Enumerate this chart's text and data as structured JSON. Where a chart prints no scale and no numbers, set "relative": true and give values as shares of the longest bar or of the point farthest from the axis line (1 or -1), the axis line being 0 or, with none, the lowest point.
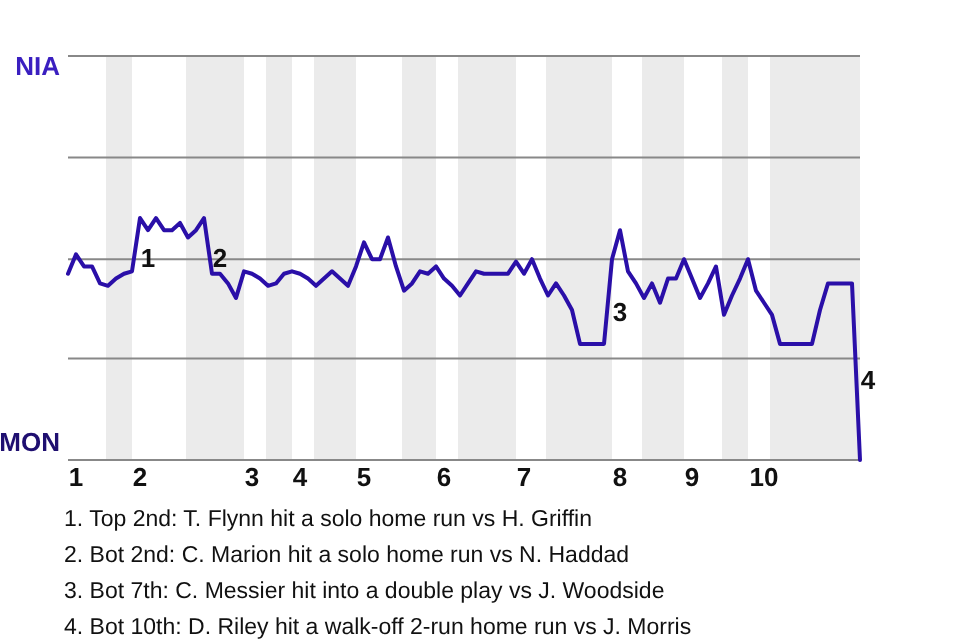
{
  "chart_data": {
    "type": "line",
    "relative": true,
    "categories": [
      null,
      "1",
      null,
      null,
      null,
      null,
      null,
      null,
      null,
      "2",
      null,
      null,
      null,
      null,
      null,
      null,
      null,
      null,
      null,
      null,
      null,
      null,
      null,
      "3",
      null,
      null,
      null,
      null,
      null,
      "4",
      null,
      null,
      null,
      null,
      null,
      null,
      null,
      "5",
      null,
      null,
      null,
      null,
      null,
      null,
      null,
      null,
      null,
      "6",
      null,
      null,
      null,
      null,
      null,
      null,
      null,
      null,
      null,
      "7",
      null,
      null,
      null,
      null,
      null,
      null,
      null,
      null,
      null,
      null,
      null,
      "8",
      null,
      null,
      null,
      null,
      null,
      null,
      null,
      null,
      "9",
      null,
      null,
      null,
      null,
      null,
      null,
      null,
      null,
      "10",
      null,
      null,
      null,
      null,
      null,
      null,
      null,
      null,
      null,
      null,
      null,
      null
    ],
    "series": [
      {
        "color": "#2a0fa8",
        "values": [
          0.77,
          0.85,
          0.8,
          0.8,
          0.73,
          0.72,
          0.75,
          0.77,
          0.78,
          1,
          0.95,
          1,
          0.95,
          0.95,
          0.98,
          0.92,
          0.95,
          1,
          0.77,
          0.77,
          0.73,
          0.67,
          0.78,
          0.77,
          0.75,
          0.72,
          0.73,
          0.77,
          0.78,
          0.77,
          0.75,
          0.72,
          0.75,
          0.78,
          0.75,
          0.72,
          0.8,
          0.9,
          0.83,
          0.83,
          0.92,
          0.8,
          0.7,
          0.73,
          0.78,
          0.77,
          0.8,
          0.75,
          0.72,
          0.68,
          0.73,
          0.78,
          0.77,
          0.77,
          0.77,
          0.77,
          0.82,
          0.77,
          0.83,
          0.75,
          0.68,
          0.73,
          0.68,
          0.62,
          0.48,
          0.48,
          0.48,
          0.48,
          0.83,
          0.95,
          0.78,
          0.73,
          0.67,
          0.73,
          0.65,
          0.75,
          0.75,
          0.83,
          0.75,
          0.67,
          0.73,
          0.8,
          0.6,
          0.68,
          0.75,
          0.83,
          0.7,
          0.65,
          0.6,
          0.48,
          0.48,
          0.48,
          0.48,
          0.48,
          0.62,
          0.73,
          0.73,
          0.73,
          0.73,
          0
        ]
      }
    ],
    "ref_lines": [
      {
        "axis": "y",
        "value": 0.42,
        "color": "#888888"
      },
      {
        "axis": "y",
        "value": 0.83,
        "color": "#888888"
      },
      {
        "axis": "y",
        "value": 1.25,
        "color": "#888888"
      },
      {
        "axis": "y",
        "value": 1.67,
        "color": "#888888"
      }
    ],
    "annotations": [
      "NIA",
      "MON",
      "1",
      "2",
      "3",
      "4",
      "1. Top 2nd: T. Flynn hit a solo home run vs H. Griffin",
      "2. Bot 2nd: C. Marion hit a solo home run vs N. Haddad",
      "3. Bot 7th: C. Messier hit into a double play vs J. Woodside",
      "4. Bot 10th: D. Riley hit a walk-off 2-run home run vs J. Morris"
    ]
  }
}
